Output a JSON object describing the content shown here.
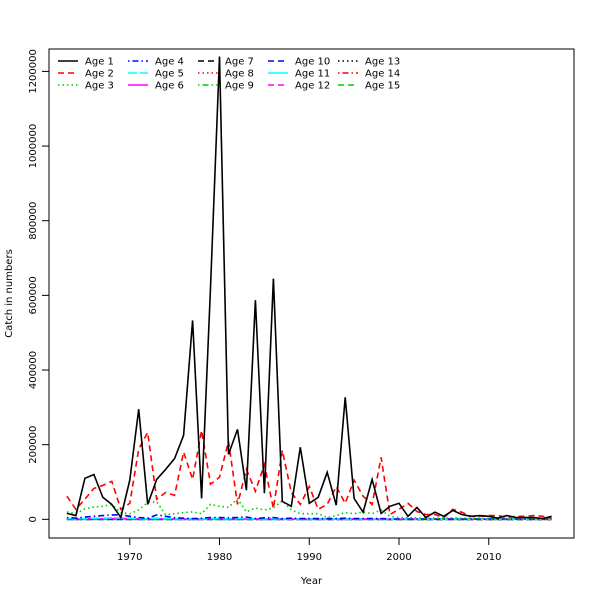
{
  "chart_data": {
    "type": "line",
    "title": "",
    "xlabel": "Year",
    "ylabel": "Catch in numbers",
    "xlim": [
      1961,
      2019.5
    ],
    "ylim": [
      -50000,
      1260000
    ],
    "x_ticks": [
      1970,
      1980,
      1990,
      2000,
      2010
    ],
    "y_ticks": [
      0,
      200000,
      400000,
      600000,
      800000,
      1000000,
      1200000
    ],
    "legend_position": "top-left",
    "grid": false,
    "x": [
      1963,
      1964,
      1965,
      1966,
      1967,
      1968,
      1969,
      1970,
      1971,
      1972,
      1973,
      1974,
      1975,
      1976,
      1977,
      1978,
      1979,
      1980,
      1981,
      1982,
      1983,
      1984,
      1985,
      1986,
      1987,
      1988,
      1989,
      1990,
      1991,
      1992,
      1993,
      1994,
      1995,
      1996,
      1997,
      1998,
      1999,
      2000,
      2001,
      2002,
      2003,
      2004,
      2005,
      2006,
      2007,
      2008,
      2009,
      2010,
      2011,
      2012,
      2013,
      2014,
      2015,
      2016,
      2017
    ],
    "series": [
      {
        "name": "Age 1",
        "color": "#000000",
        "dash": "solid",
        "values": [
          16000,
          10000,
          110000,
          120000,
          59000,
          40000,
          5000,
          105000,
          295000,
          40000,
          107000,
          134000,
          163000,
          225000,
          533000,
          56000,
          620000,
          1240000,
          174000,
          241000,
          78000,
          587000,
          70000,
          645000,
          48000,
          35000,
          193000,
          43000,
          59000,
          126000,
          38000,
          327000,
          56000,
          19000,
          107000,
          16000,
          35000,
          43000,
          8000,
          32000,
          5000,
          19000,
          8000,
          24000,
          13000,
          8000,
          10000,
          8000,
          3000,
          10000,
          5000,
          5000,
          5000,
          2000,
          8000
        ]
      },
      {
        "name": "Age 2",
        "color": "#ff0000",
        "dash": "dashed",
        "values": [
          62000,
          27000,
          54000,
          83000,
          91000,
          102000,
          27000,
          43000,
          188000,
          233000,
          54000,
          72000,
          64000,
          180000,
          107000,
          238000,
          94000,
          113000,
          209000,
          40000,
          134000,
          75000,
          147000,
          29000,
          185000,
          72000,
          40000,
          88000,
          27000,
          40000,
          88000,
          43000,
          105000,
          62000,
          40000,
          166000,
          13000,
          27000,
          43000,
          21000,
          13000,
          13000,
          5000,
          27000,
          19000,
          8000,
          8000,
          10000,
          10000,
          5000,
          8000,
          8000,
          10000,
          8000,
          3000
        ]
      },
      {
        "name": "Age 3",
        "color": "#00cd00",
        "dash": "dotted",
        "values": [
          20000,
          15000,
          28000,
          33000,
          35000,
          40000,
          18000,
          15000,
          25000,
          45000,
          47000,
          12000,
          15000,
          18000,
          20000,
          15000,
          40000,
          35000,
          32000,
          55000,
          20000,
          30000,
          25000,
          30000,
          50000,
          25000,
          15000,
          15000,
          15000,
          5000,
          10000,
          18000,
          15000,
          20000,
          15000,
          25000,
          8000,
          5000,
          5000,
          4000,
          3000,
          3000,
          3000,
          4000,
          3000,
          3000,
          3000,
          2000,
          2000,
          2000,
          2000,
          2000,
          2000,
          2000,
          2000
        ]
      },
      {
        "name": "Age 4",
        "color": "#0000ff",
        "dash": "dotdash",
        "values": [
          5000,
          3000,
          6000,
          8000,
          10000,
          12000,
          12000,
          8000,
          5000,
          3000,
          12000,
          8000,
          4000,
          3000,
          2000,
          3000,
          5000,
          5000,
          4000,
          5000,
          6000,
          2000,
          4000,
          5000,
          2000,
          3000,
          2000,
          2000,
          2000,
          2000,
          2000,
          3000,
          2000,
          2000,
          2000,
          2000,
          1000,
          1000,
          1000,
          1000,
          1000,
          1000,
          1000,
          1000,
          1000,
          1000,
          1000,
          1000,
          1000,
          1000,
          1000,
          1000,
          1000,
          1000,
          1000
        ]
      },
      {
        "name": "Age 5",
        "color": "#00ffff",
        "dash": "longdash",
        "values": [
          2000,
          1500,
          2000,
          3000,
          3000,
          4000,
          4000,
          3000,
          2000,
          1500,
          3000,
          2000,
          1500,
          1000,
          1000,
          1000,
          2000,
          2000,
          1500,
          2000,
          2000,
          1000,
          1500,
          2000,
          1000,
          1000,
          1000,
          1000,
          1000,
          1000,
          1000,
          1000,
          1000,
          1000,
          1000,
          1000,
          500,
          500,
          500,
          500,
          500,
          500,
          500,
          500,
          500,
          500,
          500,
          500,
          500,
          500,
          500,
          500,
          500,
          500,
          500
        ]
      },
      {
        "name": "Age 6",
        "color": "#ff00ff",
        "dash": "solid",
        "values": [
          1000,
          800,
          1000,
          1500,
          1500,
          2000,
          2000,
          1500,
          1000,
          800,
          1500,
          1000,
          800,
          500,
          500,
          500,
          1000,
          1000,
          800,
          1000,
          1000,
          500,
          800,
          1000,
          500,
          500,
          500,
          500,
          500,
          500,
          500,
          500,
          500,
          500,
          500,
          500,
          300,
          300,
          300,
          300,
          300,
          300,
          300,
          300,
          300,
          300,
          300,
          300,
          300,
          300,
          300,
          300,
          300,
          300,
          300
        ]
      },
      {
        "name": "Age 7",
        "color": "#000000",
        "dash": "dashed",
        "values": [
          500,
          400,
          500,
          800,
          800,
          1000,
          1000,
          800,
          500,
          400,
          800,
          500,
          400,
          300,
          300,
          300,
          500,
          500,
          400,
          500,
          500,
          300,
          400,
          500,
          300,
          300,
          300,
          300,
          300,
          300,
          300,
          300,
          300,
          300,
          300,
          300,
          200,
          200,
          200,
          200,
          200,
          200,
          200,
          200,
          200,
          200,
          200,
          200,
          200,
          200,
          200,
          200,
          200,
          200,
          200
        ]
      },
      {
        "name": "Age 8",
        "color": "#ff0000",
        "dash": "dotted",
        "values": [
          300,
          200,
          300,
          400,
          400,
          500,
          500,
          400,
          300,
          200,
          400,
          300,
          200,
          200,
          200,
          200,
          300,
          300,
          200,
          300,
          300,
          200,
          200,
          300,
          200,
          200,
          200,
          200,
          200,
          200,
          200,
          200,
          200,
          200,
          200,
          200,
          100,
          100,
          100,
          100,
          100,
          100,
          100,
          100,
          100,
          100,
          100,
          100,
          100,
          100,
          100,
          100,
          100,
          100,
          100
        ]
      },
      {
        "name": "Age 9",
        "color": "#00cd00",
        "dash": "dotdash",
        "values": [
          200,
          100,
          200,
          200,
          200,
          300,
          300,
          200,
          200,
          100,
          200,
          200,
          100,
          100,
          100,
          100,
          200,
          200,
          100,
          200,
          200,
          100,
          100,
          200,
          100,
          100,
          100,
          100,
          100,
          100,
          100,
          100,
          100,
          100,
          100,
          100,
          50,
          50,
          50,
          50,
          50,
          50,
          50,
          50,
          50,
          50,
          50,
          50,
          50,
          50,
          50,
          50,
          50,
          50,
          50
        ]
      },
      {
        "name": "Age 10",
        "color": "#0000ff",
        "dash": "dashed",
        "values": [
          100,
          50,
          100,
          100,
          100,
          150,
          150,
          100,
          100,
          50,
          100,
          100,
          50,
          50,
          50,
          50,
          100,
          100,
          50,
          100,
          100,
          50,
          50,
          100,
          50,
          50,
          50,
          50,
          50,
          50,
          50,
          50,
          50,
          50,
          50,
          50,
          30,
          30,
          30,
          30,
          30,
          30,
          30,
          30,
          30,
          30,
          30,
          30,
          30,
          30,
          30,
          30,
          30,
          30,
          30
        ]
      },
      {
        "name": "Age 11",
        "color": "#00ffff",
        "dash": "solid",
        "values": [
          50,
          30,
          50,
          50,
          50,
          80,
          80,
          50,
          50,
          30,
          50,
          50,
          30,
          30,
          30,
          30,
          50,
          50,
          30,
          50,
          50,
          30,
          30,
          50,
          30,
          30,
          30,
          30,
          30,
          30,
          30,
          30,
          30,
          30,
          30,
          30,
          20,
          20,
          20,
          20,
          20,
          20,
          20,
          20,
          20,
          20,
          20,
          20,
          20,
          20,
          20,
          20,
          20,
          20,
          20
        ]
      },
      {
        "name": "Age 12",
        "color": "#ff00ff",
        "dash": "dashed",
        "values": [
          30,
          20,
          30,
          30,
          30,
          50,
          50,
          30,
          30,
          20,
          30,
          30,
          20,
          20,
          20,
          20,
          30,
          30,
          20,
          30,
          30,
          20,
          20,
          30,
          20,
          20,
          20,
          20,
          20,
          20,
          20,
          20,
          20,
          20,
          20,
          20,
          10,
          10,
          10,
          10,
          10,
          10,
          10,
          10,
          10,
          10,
          10,
          10,
          10,
          10,
          10,
          10,
          10,
          10,
          10
        ]
      },
      {
        "name": "Age 13",
        "color": "#000000",
        "dash": "dotted",
        "values": [
          20,
          10,
          20,
          20,
          20,
          30,
          30,
          20,
          20,
          10,
          20,
          20,
          10,
          10,
          10,
          10,
          20,
          20,
          10,
          20,
          20,
          10,
          10,
          20,
          10,
          10,
          10,
          10,
          10,
          10,
          10,
          10,
          10,
          10,
          10,
          10,
          5,
          5,
          5,
          5,
          5,
          5,
          5,
          5,
          5,
          5,
          5,
          5,
          5,
          5,
          5,
          5,
          5,
          5,
          5
        ]
      },
      {
        "name": "Age 14",
        "color": "#ff0000",
        "dash": "dotdash",
        "values": [
          10,
          5,
          10,
          10,
          10,
          20,
          20,
          10,
          10,
          5,
          10,
          10,
          5,
          5,
          5,
          5,
          10,
          10,
          5,
          10,
          10,
          5,
          5,
          10,
          5,
          5,
          5,
          5,
          5,
          5,
          5,
          5,
          5,
          5,
          5,
          5,
          2,
          2,
          2,
          2,
          2,
          2,
          2,
          2,
          2,
          2,
          2,
          2,
          2,
          2,
          2,
          2,
          2,
          2,
          2
        ]
      },
      {
        "name": "Age 15",
        "color": "#00cd00",
        "dash": "dashed",
        "values": [
          5,
          2,
          5,
          5,
          5,
          10,
          10,
          5,
          5,
          2,
          5,
          5,
          2,
          2,
          2,
          2,
          5,
          5,
          2,
          5,
          5,
          2,
          2,
          5,
          2,
          2,
          2,
          2,
          2,
          2,
          2,
          2,
          2,
          2,
          2,
          2,
          1,
          1,
          1,
          1,
          1,
          1,
          1,
          1,
          1,
          1,
          1,
          1,
          1,
          1,
          1,
          1,
          1,
          1,
          1
        ]
      }
    ]
  }
}
